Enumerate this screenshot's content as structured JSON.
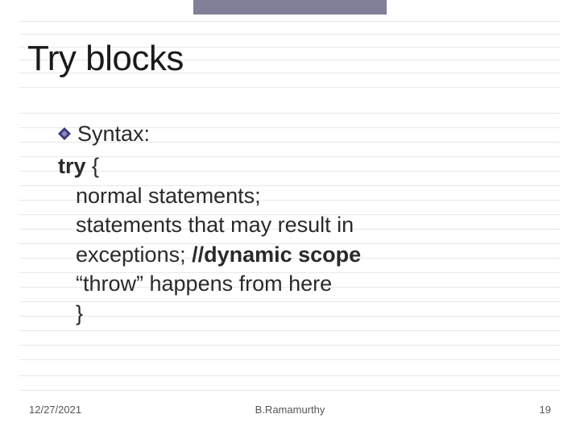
{
  "banner": {
    "color": "#808099"
  },
  "rules": {
    "color": "#e8e8e8",
    "positions": [
      26,
      42,
      58,
      74,
      90,
      108,
      140,
      158,
      176,
      194,
      212,
      230,
      248,
      266,
      284,
      302,
      320,
      338,
      356,
      374,
      392,
      410,
      428,
      446,
      466,
      484
    ]
  },
  "title": {
    "text": "Try blocks",
    "fontsize": 44,
    "color": "#1a1a1a"
  },
  "content": {
    "fontsize": 27,
    "lines": [
      {
        "kind": "bullet",
        "text": "Syntax:"
      },
      {
        "kind": "plain",
        "html": "<b>try</b> {"
      },
      {
        "kind": "indent",
        "html": "normal statements;"
      },
      {
        "kind": "indent",
        "html": "statements that may result in"
      },
      {
        "kind": "indent",
        "html": "exceptions; <b>//dynamic scope</b>"
      },
      {
        "kind": "indent",
        "html": "“throw” happens from here"
      },
      {
        "kind": "indent",
        "html": "}"
      }
    ]
  },
  "bullet_icon": {
    "outer_color": "#3a3a7a",
    "inner_color": "#8a8ac0"
  },
  "footer": {
    "date": "12/27/2021",
    "author": "B.Ramamurthy",
    "page": "19",
    "fontsize": 13
  }
}
